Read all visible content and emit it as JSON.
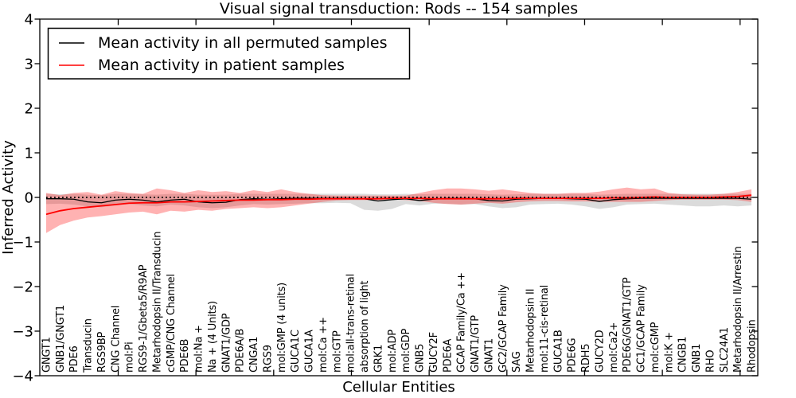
{
  "chart_data": {
    "type": "line",
    "title": "Visual signal transduction: Rods -- 154 samples",
    "xlabel": "Cellular Entities",
    "ylabel": "Inferred Activity",
    "ylim": [
      -4,
      4
    ],
    "yticks": [
      -4,
      -3,
      -2,
      -1,
      0,
      1,
      2,
      3,
      4
    ],
    "grid": false,
    "legend_position": "upper left",
    "zero_reference_line": {
      "style": "dotted",
      "color": "#000000",
      "y": 0
    },
    "categories": [
      "GNGT1",
      "GNB1/GNGT1",
      "PDE6",
      "Transducin",
      "RGS9BP",
      "CNG Channel",
      "mol:Pi",
      "RGS9-1/Gbeta5/R9AP",
      "Metarhodopsin II/Transducin",
      "cGMP/CNG Channel",
      "PDE6B",
      "mol:Na +",
      "Na + (4 Units)",
      "GNAT1/GDP",
      "PDE6A/B",
      "CNGA1",
      "RGS9",
      "mol:GMP (4 units)",
      "GUCA1C",
      "GUCA1A",
      "mol:Ca ++",
      "mol:GTP",
      "mol:all-trans-retinal",
      "absorption of light",
      "GRK1",
      "mol:ADP",
      "mol:GDP",
      "GNB5",
      "GUCY2F",
      "PDE6A",
      "GCAP Family/Ca ++",
      "GNAT1/GTP",
      "GNAT1",
      "GC2/GCAP Family",
      "SAG",
      "Metarhodopsin II",
      "mol:11-cis-retinal",
      "GUCA1B",
      "PDE6G",
      "RDH5",
      "GUCY2D",
      "mol:Ca2+",
      "PDE6G/GNAT1/GTP",
      "GC1/GCAP Family",
      "mol:cGMP",
      "mol:K +",
      "CNGB1",
      "GNB1",
      "RHO",
      "SLC24A1",
      "Metarhodopsin II/Arrestin",
      "Rhodopsin"
    ],
    "series": [
      {
        "name": "Mean activity in all permuted samples",
        "color": "#000000",
        "band_color": "#000000",
        "band_opacity": 0.14,
        "values": [
          -0.03,
          -0.03,
          -0.04,
          -0.1,
          -0.12,
          -0.06,
          -0.04,
          -0.06,
          -0.1,
          -0.06,
          -0.04,
          -0.1,
          -0.12,
          -0.11,
          -0.05,
          -0.03,
          -0.04,
          -0.03,
          -0.02,
          -0.02,
          -0.02,
          -0.02,
          -0.02,
          -0.03,
          -0.08,
          -0.05,
          -0.03,
          -0.07,
          -0.04,
          -0.02,
          -0.02,
          -0.03,
          -0.07,
          -0.08,
          -0.04,
          -0.03,
          -0.02,
          -0.02,
          -0.03,
          -0.04,
          -0.09,
          -0.05,
          -0.03,
          -0.02,
          -0.02,
          -0.02,
          -0.02,
          -0.02,
          -0.02,
          -0.02,
          -0.02,
          -0.04
        ],
        "band_upper": [
          0.08,
          0.07,
          0.08,
          0.06,
          0.05,
          0.08,
          0.08,
          0.07,
          0.06,
          0.08,
          0.08,
          0.06,
          0.06,
          0.06,
          0.08,
          0.08,
          0.08,
          0.08,
          0.08,
          0.08,
          0.08,
          0.08,
          0.08,
          0.08,
          0.07,
          0.07,
          0.08,
          0.07,
          0.08,
          0.08,
          0.08,
          0.08,
          0.07,
          0.06,
          0.07,
          0.08,
          0.08,
          0.08,
          0.08,
          0.08,
          0.06,
          0.07,
          0.08,
          0.08,
          0.08,
          0.08,
          0.08,
          0.08,
          0.08,
          0.08,
          0.08,
          0.08
        ],
        "band_lower": [
          -0.15,
          -0.14,
          -0.16,
          -0.2,
          -0.22,
          -0.18,
          -0.15,
          -0.18,
          -0.2,
          -0.16,
          -0.18,
          -0.22,
          -0.24,
          -0.22,
          -0.18,
          -0.15,
          -0.16,
          -0.15,
          -0.14,
          -0.13,
          -0.13,
          -0.12,
          -0.13,
          -0.28,
          -0.3,
          -0.26,
          -0.15,
          -0.18,
          -0.14,
          -0.14,
          -0.16,
          -0.15,
          -0.2,
          -0.24,
          -0.22,
          -0.16,
          -0.15,
          -0.14,
          -0.16,
          -0.2,
          -0.26,
          -0.22,
          -0.16,
          -0.15,
          -0.14,
          -0.16,
          -0.18,
          -0.2,
          -0.2,
          -0.18,
          -0.2,
          -0.18
        ]
      },
      {
        "name": "Mean activity in patient samples",
        "color": "#ff0000",
        "band_color": "#ff0000",
        "band_opacity": 0.3,
        "values": [
          -0.38,
          -0.3,
          -0.25,
          -0.22,
          -0.19,
          -0.16,
          -0.13,
          -0.12,
          -0.12,
          -0.1,
          -0.1,
          -0.09,
          -0.08,
          -0.07,
          -0.06,
          -0.06,
          -0.05,
          -0.05,
          -0.04,
          -0.04,
          -0.03,
          -0.03,
          -0.03,
          -0.03,
          -0.03,
          -0.02,
          -0.02,
          -0.02,
          -0.03,
          -0.03,
          -0.03,
          -0.03,
          -0.03,
          -0.03,
          -0.02,
          -0.02,
          -0.02,
          -0.02,
          -0.02,
          -0.02,
          -0.02,
          -0.01,
          -0.01,
          0.0,
          0.01,
          0.0,
          0.0,
          0.0,
          0.0,
          0.01,
          0.02,
          0.05
        ],
        "band_upper": [
          0.1,
          0.05,
          0.1,
          0.12,
          0.06,
          0.14,
          0.1,
          0.08,
          0.2,
          0.16,
          0.1,
          0.16,
          0.12,
          0.14,
          0.1,
          0.16,
          0.12,
          0.18,
          0.12,
          0.08,
          0.05,
          0.04,
          0.04,
          0.04,
          0.04,
          0.04,
          0.04,
          0.1,
          0.16,
          0.2,
          0.2,
          0.18,
          0.15,
          0.18,
          0.14,
          0.1,
          0.08,
          0.08,
          0.1,
          0.1,
          0.13,
          0.18,
          0.22,
          0.18,
          0.2,
          0.1,
          0.07,
          0.06,
          0.06,
          0.08,
          0.12,
          0.18
        ],
        "band_lower": [
          -0.8,
          -0.62,
          -0.52,
          -0.45,
          -0.42,
          -0.38,
          -0.34,
          -0.32,
          -0.38,
          -0.3,
          -0.32,
          -0.28,
          -0.3,
          -0.26,
          -0.24,
          -0.22,
          -0.24,
          -0.22,
          -0.18,
          -0.14,
          -0.1,
          -0.07,
          -0.06,
          -0.06,
          -0.06,
          -0.05,
          -0.06,
          -0.08,
          -0.12,
          -0.15,
          -0.16,
          -0.14,
          -0.12,
          -0.14,
          -0.11,
          -0.09,
          -0.08,
          -0.08,
          -0.09,
          -0.09,
          -0.1,
          -0.1,
          -0.1,
          -0.1,
          -0.08,
          -0.06,
          -0.05,
          -0.05,
          -0.05,
          -0.05,
          -0.06,
          -0.1
        ]
      }
    ]
  }
}
